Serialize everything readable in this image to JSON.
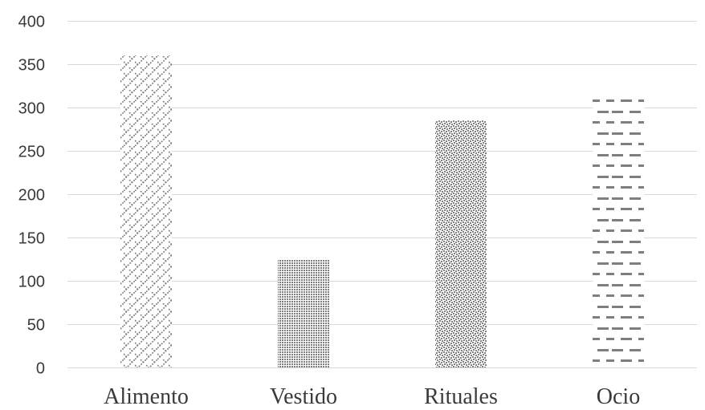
{
  "chart_data": {
    "type": "bar",
    "categories": [
      "Alimento",
      "Vestido",
      "Rituales",
      "Ocio"
    ],
    "values": [
      360,
      125,
      285,
      311
    ],
    "ylim": [
      0,
      400
    ],
    "yticks": [
      0,
      50,
      100,
      150,
      200,
      250,
      300,
      350,
      400
    ],
    "grid": true,
    "legend": "none",
    "bar_patterns": [
      "diagonal-brick",
      "fine-dots",
      "checker-speckle",
      "dashed-horizontal"
    ],
    "colors": {
      "pattern": "#7f7f7f",
      "grid": "#d9d9d9",
      "text": "#3a3a3a"
    }
  }
}
